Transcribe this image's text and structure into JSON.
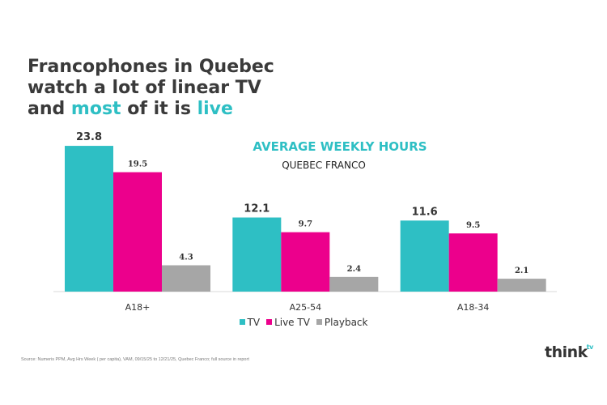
{
  "headline": {
    "line1": "Francophones in Quebec",
    "line2": "watch a lot of linear TV",
    "line3_a": "and ",
    "line3_b": "most",
    "line3_c": " of it is ",
    "line3_d": "live"
  },
  "chart_data": {
    "type": "bar",
    "title": "AVERAGE WEEKLY HOURS",
    "subtitle": "QUEBEC FRANCO",
    "categories": [
      "A18+",
      "A25-54",
      "A18-34"
    ],
    "series": [
      {
        "name": "TV",
        "values": [
          23.8,
          12.1,
          11.6
        ],
        "color": "#2ebfc4"
      },
      {
        "name": "Live TV",
        "values": [
          19.5,
          9.7,
          9.5
        ],
        "color": "#ec008c"
      },
      {
        "name": "Playback",
        "values": [
          4.3,
          2.4,
          2.1
        ],
        "color": "#a6a6a6"
      }
    ],
    "ylim": [
      0,
      26
    ],
    "grid": false,
    "legend_position": "bottom"
  },
  "source": "Source: Numeris PPM, Avg Hrs Week ( per capita), VAM, 09/15/25 to 12/21/25, Quebec Franco; full source in report",
  "logo": {
    "text": "think",
    "superscript": "tv"
  }
}
